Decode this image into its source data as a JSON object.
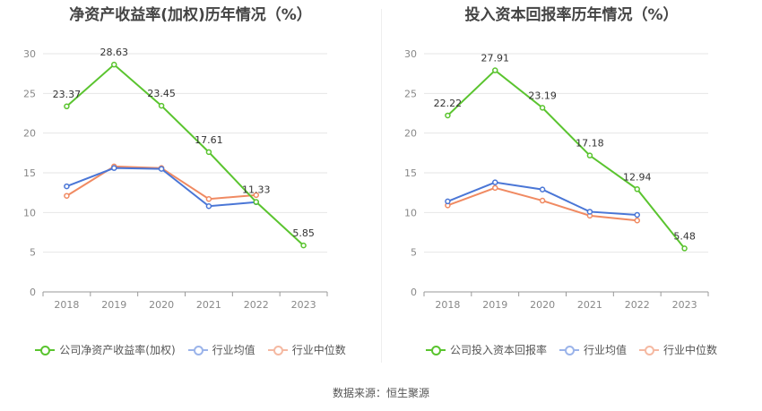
{
  "charts": [
    {
      "title": "净资产收益率(加权)历年情况（%）",
      "legend": [
        "公司净资产收益率(加权)",
        "行业均值",
        "行业中位数"
      ]
    },
    {
      "title": "投入资本回报率历年情况（%）",
      "legend": [
        "公司投入资本回报率",
        "行业均值",
        "行业中位数"
      ]
    }
  ],
  "source": "数据来源：恒生聚源",
  "colors": {
    "company": "#5ac42f",
    "mean": "#4a76d6",
    "median": "#f08a62",
    "grid": "#e6e6e6",
    "axis": "#999999",
    "tick_text": "#888888",
    "label_text": "#333333"
  },
  "chart_data": [
    {
      "type": "line",
      "title": "净资产收益率(加权)历年情况（%）",
      "categories": [
        "2018",
        "2019",
        "2020",
        "2021",
        "2022",
        "2023"
      ],
      "ylim": [
        0,
        30
      ],
      "yticks": [
        0,
        5,
        10,
        15,
        20,
        25,
        30
      ],
      "grid": true,
      "legend_position": "bottom",
      "series": [
        {
          "name": "公司净资产收益率(加权)",
          "values": [
            23.37,
            28.63,
            23.45,
            17.61,
            11.33,
            5.85
          ],
          "labels": [
            "23.37",
            "28.63",
            "23.45",
            "17.61",
            "11.33",
            "5.85"
          ],
          "color": "#5ac42f"
        },
        {
          "name": "行业均值",
          "values": [
            13.3,
            15.6,
            15.5,
            10.8,
            11.3,
            null
          ],
          "color": "#4a76d6"
        },
        {
          "name": "行业中位数",
          "values": [
            12.1,
            15.8,
            15.6,
            11.7,
            12.2,
            null
          ],
          "color": "#f08a62"
        }
      ]
    },
    {
      "type": "line",
      "title": "投入资本回报率历年情况（%）",
      "categories": [
        "2018",
        "2019",
        "2020",
        "2021",
        "2022",
        "2023"
      ],
      "ylim": [
        0,
        30
      ],
      "yticks": [
        0,
        5,
        10,
        15,
        20,
        25,
        30
      ],
      "grid": true,
      "legend_position": "bottom",
      "series": [
        {
          "name": "公司投入资本回报率",
          "values": [
            22.22,
            27.91,
            23.19,
            17.18,
            12.94,
            5.48
          ],
          "labels": [
            "22.22",
            "27.91",
            "23.19",
            "17.18",
            "12.94",
            "5.48"
          ],
          "color": "#5ac42f"
        },
        {
          "name": "行业均值",
          "values": [
            11.4,
            13.8,
            12.9,
            10.1,
            9.7,
            null
          ],
          "color": "#4a76d6"
        },
        {
          "name": "行业中位数",
          "values": [
            10.9,
            13.1,
            11.5,
            9.6,
            9.0,
            null
          ],
          "color": "#f08a62"
        }
      ]
    }
  ]
}
